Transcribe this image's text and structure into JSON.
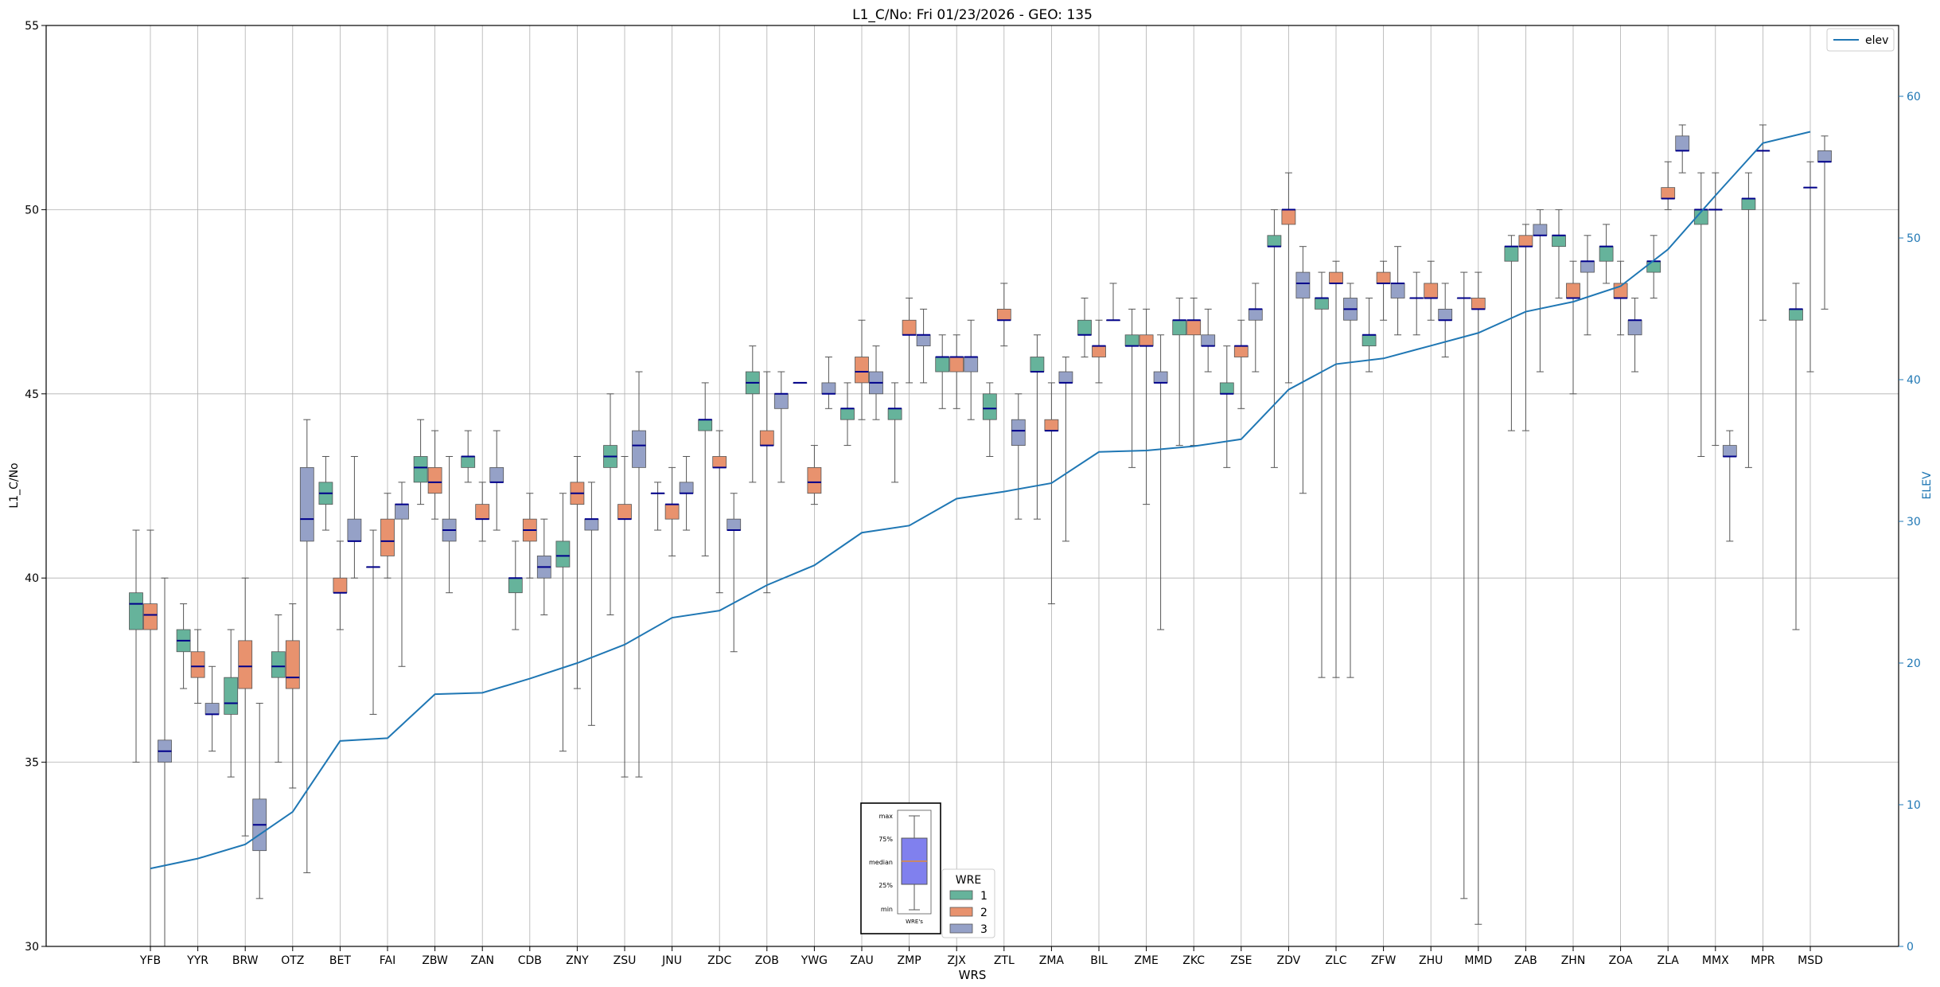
{
  "chart_data": {
    "type": "box",
    "title": "L1_C/No: Fri 01/23/2026 - GEO: 135",
    "xlabel": "WRS",
    "ylabel": "L1_C/No",
    "y2label": "ELEV",
    "ylim": [
      30,
      55
    ],
    "y2lim": [
      0,
      65
    ],
    "yticks": [
      30,
      35,
      40,
      45,
      50,
      55
    ],
    "y2ticks": [
      0,
      10,
      20,
      30,
      40,
      50,
      60
    ],
    "grid": true,
    "categories": [
      "YFB",
      "YYR",
      "BRW",
      "OTZ",
      "BET",
      "FAI",
      "ZBW",
      "ZAN",
      "CDB",
      "ZNY",
      "ZSU",
      "JNU",
      "ZDC",
      "ZOB",
      "YWG",
      "ZAU",
      "ZMP",
      "ZJX",
      "ZTL",
      "ZMA",
      "BIL",
      "ZME",
      "ZKC",
      "ZSE",
      "ZDV",
      "ZLC",
      "ZFW",
      "ZHU",
      "MMD",
      "ZAB",
      "ZHN",
      "ZOA",
      "ZLA",
      "MMX",
      "MPR",
      "MSD"
    ],
    "series_colors": {
      "1": "#66b39b",
      "2": "#e8926e",
      "3": "#95a1c7"
    },
    "median_color": "#00008b",
    "elev_color": "#1f77b4",
    "boxes": [
      {
        "cat": "YFB",
        "wre": 1,
        "min": 35.0,
        "q1": 38.6,
        "median": 39.3,
        "q3": 39.6,
        "max": 41.3
      },
      {
        "cat": "YFB",
        "wre": 2,
        "min": 30.0,
        "q1": 38.6,
        "median": 39.0,
        "q3": 39.3,
        "max": 41.3
      },
      {
        "cat": "YFB",
        "wre": 3,
        "min": 30.0,
        "q1": 35.0,
        "median": 35.3,
        "q3": 35.6,
        "max": 40.0
      },
      {
        "cat": "YYR",
        "wre": 1,
        "min": 37.0,
        "q1": 38.0,
        "median": 38.3,
        "q3": 38.6,
        "max": 39.3
      },
      {
        "cat": "YYR",
        "wre": 2,
        "min": 36.6,
        "q1": 37.3,
        "median": 37.6,
        "q3": 38.0,
        "max": 38.6
      },
      {
        "cat": "YYR",
        "wre": 3,
        "min": 35.3,
        "q1": 36.3,
        "median": 36.3,
        "q3": 36.6,
        "max": 37.6
      },
      {
        "cat": "BRW",
        "wre": 1,
        "min": 34.6,
        "q1": 36.3,
        "median": 36.6,
        "q3": 37.3,
        "max": 38.6
      },
      {
        "cat": "BRW",
        "wre": 2,
        "min": 33.0,
        "q1": 37.0,
        "median": 37.6,
        "q3": 38.3,
        "max": 40.0
      },
      {
        "cat": "BRW",
        "wre": 3,
        "min": 31.3,
        "q1": 32.6,
        "median": 33.3,
        "q3": 34.0,
        "max": 36.6
      },
      {
        "cat": "OTZ",
        "wre": 1,
        "min": 35.0,
        "q1": 37.3,
        "median": 37.6,
        "q3": 38.0,
        "max": 39.0
      },
      {
        "cat": "OTZ",
        "wre": 2,
        "min": 34.3,
        "q1": 37.0,
        "median": 37.3,
        "q3": 38.3,
        "max": 39.3
      },
      {
        "cat": "OTZ",
        "wre": 3,
        "min": 32.0,
        "q1": 41.0,
        "median": 41.6,
        "q3": 43.0,
        "max": 44.3
      },
      {
        "cat": "BET",
        "wre": 1,
        "min": 41.3,
        "q1": 42.0,
        "median": 42.3,
        "q3": 42.6,
        "max": 43.3
      },
      {
        "cat": "BET",
        "wre": 2,
        "min": 38.6,
        "q1": 39.6,
        "median": 39.6,
        "q3": 40.0,
        "max": 41.0
      },
      {
        "cat": "BET",
        "wre": 3,
        "min": 40.0,
        "q1": 41.0,
        "median": 41.0,
        "q3": 41.6,
        "max": 43.3
      },
      {
        "cat": "FAI",
        "wre": 1,
        "min": 36.3,
        "q1": 40.3,
        "median": 40.3,
        "q3": 40.3,
        "max": 41.3
      },
      {
        "cat": "FAI",
        "wre": 2,
        "min": 40.0,
        "q1": 40.6,
        "median": 41.0,
        "q3": 41.6,
        "max": 42.3
      },
      {
        "cat": "FAI",
        "wre": 3,
        "min": 37.6,
        "q1": 41.6,
        "median": 42.0,
        "q3": 42.0,
        "max": 42.6
      },
      {
        "cat": "ZBW",
        "wre": 1,
        "min": 42.0,
        "q1": 42.6,
        "median": 43.0,
        "q3": 43.3,
        "max": 44.3
      },
      {
        "cat": "ZBW",
        "wre": 2,
        "min": 41.6,
        "q1": 42.3,
        "median": 42.6,
        "q3": 43.0,
        "max": 44.0
      },
      {
        "cat": "ZBW",
        "wre": 3,
        "min": 39.6,
        "q1": 41.0,
        "median": 41.3,
        "q3": 41.6,
        "max": 43.3
      },
      {
        "cat": "ZAN",
        "wre": 1,
        "min": 42.6,
        "q1": 43.0,
        "median": 43.3,
        "q3": 43.3,
        "max": 44.0
      },
      {
        "cat": "ZAN",
        "wre": 2,
        "min": 41.0,
        "q1": 41.6,
        "median": 41.6,
        "q3": 42.0,
        "max": 42.6
      },
      {
        "cat": "ZAN",
        "wre": 3,
        "min": 41.3,
        "q1": 42.6,
        "median": 42.6,
        "q3": 43.0,
        "max": 44.0
      },
      {
        "cat": "CDB",
        "wre": 1,
        "min": 38.6,
        "q1": 39.6,
        "median": 40.0,
        "q3": 40.0,
        "max": 41.0
      },
      {
        "cat": "CDB",
        "wre": 2,
        "min": 40.0,
        "q1": 41.0,
        "median": 41.3,
        "q3": 41.6,
        "max": 42.3
      },
      {
        "cat": "CDB",
        "wre": 3,
        "min": 39.0,
        "q1": 40.0,
        "median": 40.3,
        "q3": 40.6,
        "max": 41.6
      },
      {
        "cat": "ZNY",
        "wre": 1,
        "min": 35.3,
        "q1": 40.3,
        "median": 40.6,
        "q3": 41.0,
        "max": 42.3
      },
      {
        "cat": "ZNY",
        "wre": 2,
        "min": 37.0,
        "q1": 42.0,
        "median": 42.3,
        "q3": 42.6,
        "max": 43.3
      },
      {
        "cat": "ZNY",
        "wre": 3,
        "min": 36.0,
        "q1": 41.3,
        "median": 41.6,
        "q3": 41.6,
        "max": 42.6
      },
      {
        "cat": "ZSU",
        "wre": 1,
        "min": 39.0,
        "q1": 43.0,
        "median": 43.3,
        "q3": 43.6,
        "max": 45.0
      },
      {
        "cat": "ZSU",
        "wre": 2,
        "min": 34.6,
        "q1": 41.6,
        "median": 41.6,
        "q3": 42.0,
        "max": 43.3
      },
      {
        "cat": "ZSU",
        "wre": 3,
        "min": 34.6,
        "q1": 43.0,
        "median": 43.6,
        "q3": 44.0,
        "max": 45.6
      },
      {
        "cat": "JNU",
        "wre": 1,
        "min": 41.3,
        "q1": 42.3,
        "median": 42.3,
        "q3": 42.3,
        "max": 42.6
      },
      {
        "cat": "JNU",
        "wre": 2,
        "min": 40.6,
        "q1": 41.6,
        "median": 42.0,
        "q3": 42.0,
        "max": 43.0
      },
      {
        "cat": "JNU",
        "wre": 3,
        "min": 41.3,
        "q1": 42.3,
        "median": 42.3,
        "q3": 42.6,
        "max": 43.3
      },
      {
        "cat": "ZDC",
        "wre": 1,
        "min": 40.6,
        "q1": 44.0,
        "median": 44.3,
        "q3": 44.3,
        "max": 45.3
      },
      {
        "cat": "ZDC",
        "wre": 2,
        "min": 39.6,
        "q1": 43.0,
        "median": 43.0,
        "q3": 43.3,
        "max": 44.0
      },
      {
        "cat": "ZDC",
        "wre": 3,
        "min": 38.0,
        "q1": 41.3,
        "median": 41.3,
        "q3": 41.6,
        "max": 42.3
      },
      {
        "cat": "ZOB",
        "wre": 1,
        "min": 42.6,
        "q1": 45.0,
        "median": 45.3,
        "q3": 45.6,
        "max": 46.3
      },
      {
        "cat": "ZOB",
        "wre": 2,
        "min": 39.6,
        "q1": 43.6,
        "median": 43.6,
        "q3": 44.0,
        "max": 45.6
      },
      {
        "cat": "ZOB",
        "wre": 3,
        "min": 42.6,
        "q1": 44.6,
        "median": 45.0,
        "q3": 45.0,
        "max": 45.6
      },
      {
        "cat": "YWG",
        "wre": 1,
        "min": 45.3,
        "q1": 45.3,
        "median": 45.3,
        "q3": 45.3,
        "max": 45.3
      },
      {
        "cat": "YWG",
        "wre": 2,
        "min": 42.0,
        "q1": 42.3,
        "median": 42.6,
        "q3": 43.0,
        "max": 43.6
      },
      {
        "cat": "YWG",
        "wre": 3,
        "min": 44.6,
        "q1": 45.0,
        "median": 45.0,
        "q3": 45.3,
        "max": 46.0
      },
      {
        "cat": "ZAU",
        "wre": 1,
        "min": 43.6,
        "q1": 44.3,
        "median": 44.6,
        "q3": 44.6,
        "max": 45.3
      },
      {
        "cat": "ZAU",
        "wre": 2,
        "min": 44.3,
        "q1": 45.3,
        "median": 45.6,
        "q3": 46.0,
        "max": 47.0
      },
      {
        "cat": "ZAU",
        "wre": 3,
        "min": 44.3,
        "q1": 45.0,
        "median": 45.3,
        "q3": 45.6,
        "max": 46.3
      },
      {
        "cat": "ZMP",
        "wre": 1,
        "min": 42.6,
        "q1": 44.3,
        "median": 44.6,
        "q3": 44.6,
        "max": 45.3
      },
      {
        "cat": "ZMP",
        "wre": 2,
        "min": 45.3,
        "q1": 46.6,
        "median": 46.6,
        "q3": 47.0,
        "max": 47.6
      },
      {
        "cat": "ZMP",
        "wre": 3,
        "min": 45.3,
        "q1": 46.3,
        "median": 46.6,
        "q3": 46.6,
        "max": 47.3
      },
      {
        "cat": "ZJX",
        "wre": 1,
        "min": 44.6,
        "q1": 45.6,
        "median": 46.0,
        "q3": 46.0,
        "max": 46.6
      },
      {
        "cat": "ZJX",
        "wre": 2,
        "min": 44.6,
        "q1": 45.6,
        "median": 46.0,
        "q3": 46.0,
        "max": 46.6
      },
      {
        "cat": "ZJX",
        "wre": 3,
        "min": 44.3,
        "q1": 45.6,
        "median": 46.0,
        "q3": 46.0,
        "max": 47.0
      },
      {
        "cat": "ZTL",
        "wre": 1,
        "min": 43.3,
        "q1": 44.3,
        "median": 44.6,
        "q3": 45.0,
        "max": 45.3
      },
      {
        "cat": "ZTL",
        "wre": 2,
        "min": 46.3,
        "q1": 47.0,
        "median": 47.0,
        "q3": 47.3,
        "max": 48.0
      },
      {
        "cat": "ZTL",
        "wre": 3,
        "min": 41.6,
        "q1": 43.6,
        "median": 44.0,
        "q3": 44.3,
        "max": 45.0
      },
      {
        "cat": "ZMA",
        "wre": 1,
        "min": 41.6,
        "q1": 45.6,
        "median": 45.6,
        "q3": 46.0,
        "max": 46.6
      },
      {
        "cat": "ZMA",
        "wre": 2,
        "min": 39.3,
        "q1": 44.0,
        "median": 44.0,
        "q3": 44.3,
        "max": 45.3
      },
      {
        "cat": "ZMA",
        "wre": 3,
        "min": 41.0,
        "q1": 45.3,
        "median": 45.3,
        "q3": 45.6,
        "max": 46.0
      },
      {
        "cat": "BIL",
        "wre": 1,
        "min": 46.0,
        "q1": 46.6,
        "median": 46.6,
        "q3": 47.0,
        "max": 47.6
      },
      {
        "cat": "BIL",
        "wre": 2,
        "min": 45.3,
        "q1": 46.0,
        "median": 46.3,
        "q3": 46.3,
        "max": 47.0
      },
      {
        "cat": "BIL",
        "wre": 3,
        "min": 47.0,
        "q1": 47.0,
        "median": 47.0,
        "q3": 47.0,
        "max": 48.0
      },
      {
        "cat": "ZME",
        "wre": 1,
        "min": 43.0,
        "q1": 46.3,
        "median": 46.3,
        "q3": 46.6,
        "max": 47.3
      },
      {
        "cat": "ZME",
        "wre": 2,
        "min": 42.0,
        "q1": 46.3,
        "median": 46.3,
        "q3": 46.6,
        "max": 47.3
      },
      {
        "cat": "ZME",
        "wre": 3,
        "min": 38.6,
        "q1": 45.3,
        "median": 45.3,
        "q3": 45.6,
        "max": 46.6
      },
      {
        "cat": "ZKC",
        "wre": 1,
        "min": 43.6,
        "q1": 46.6,
        "median": 47.0,
        "q3": 47.0,
        "max": 47.6
      },
      {
        "cat": "ZKC",
        "wre": 2,
        "min": 43.6,
        "q1": 46.6,
        "median": 47.0,
        "q3": 47.0,
        "max": 47.6
      },
      {
        "cat": "ZKC",
        "wre": 3,
        "min": 45.6,
        "q1": 46.3,
        "median": 46.3,
        "q3": 46.6,
        "max": 47.3
      },
      {
        "cat": "ZSE",
        "wre": 1,
        "min": 43.0,
        "q1": 45.0,
        "median": 45.0,
        "q3": 45.3,
        "max": 46.3
      },
      {
        "cat": "ZSE",
        "wre": 2,
        "min": 44.6,
        "q1": 46.0,
        "median": 46.3,
        "q3": 46.3,
        "max": 47.0
      },
      {
        "cat": "ZSE",
        "wre": 3,
        "min": 45.6,
        "q1": 47.0,
        "median": 47.3,
        "q3": 47.3,
        "max": 48.0
      },
      {
        "cat": "ZDV",
        "wre": 1,
        "min": 43.0,
        "q1": 49.0,
        "median": 49.0,
        "q3": 49.3,
        "max": 50.0
      },
      {
        "cat": "ZDV",
        "wre": 2,
        "min": 45.3,
        "q1": 49.6,
        "median": 50.0,
        "q3": 50.0,
        "max": 51.0
      },
      {
        "cat": "ZDV",
        "wre": 3,
        "min": 42.3,
        "q1": 47.6,
        "median": 48.0,
        "q3": 48.3,
        "max": 49.0
      },
      {
        "cat": "ZLC",
        "wre": 1,
        "min": 37.3,
        "q1": 47.3,
        "median": 47.6,
        "q3": 47.6,
        "max": 48.3
      },
      {
        "cat": "ZLC",
        "wre": 2,
        "min": 37.3,
        "q1": 48.0,
        "median": 48.0,
        "q3": 48.3,
        "max": 48.6
      },
      {
        "cat": "ZLC",
        "wre": 3,
        "min": 37.3,
        "q1": 47.0,
        "median": 47.3,
        "q3": 47.6,
        "max": 48.0
      },
      {
        "cat": "ZFW",
        "wre": 1,
        "min": 45.6,
        "q1": 46.3,
        "median": 46.6,
        "q3": 46.6,
        "max": 47.6
      },
      {
        "cat": "ZFW",
        "wre": 2,
        "min": 47.0,
        "q1": 48.0,
        "median": 48.0,
        "q3": 48.3,
        "max": 48.6
      },
      {
        "cat": "ZFW",
        "wre": 3,
        "min": 46.6,
        "q1": 47.6,
        "median": 48.0,
        "q3": 48.0,
        "max": 49.0
      },
      {
        "cat": "ZHU",
        "wre": 1,
        "min": 46.6,
        "q1": 47.6,
        "median": 47.6,
        "q3": 47.6,
        "max": 48.3
      },
      {
        "cat": "ZHU",
        "wre": 2,
        "min": 47.0,
        "q1": 47.6,
        "median": 47.6,
        "q3": 48.0,
        "max": 48.6
      },
      {
        "cat": "ZHU",
        "wre": 3,
        "min": 46.0,
        "q1": 47.0,
        "median": 47.0,
        "q3": 47.3,
        "max": 48.0
      },
      {
        "cat": "MMD",
        "wre": 1,
        "min": 31.3,
        "q1": 47.6,
        "median": 47.6,
        "q3": 47.6,
        "max": 48.3
      },
      {
        "cat": "MMD",
        "wre": 2,
        "min": 30.6,
        "q1": 47.3,
        "median": 47.3,
        "q3": 47.6,
        "max": 48.3
      },
      {
        "cat": "ZAB",
        "wre": 1,
        "min": 44.0,
        "q1": 48.6,
        "median": 49.0,
        "q3": 49.0,
        "max": 49.3
      },
      {
        "cat": "ZAB",
        "wre": 2,
        "min": 44.0,
        "q1": 49.0,
        "median": 49.0,
        "q3": 49.3,
        "max": 49.6
      },
      {
        "cat": "ZAB",
        "wre": 3,
        "min": 45.6,
        "q1": 49.3,
        "median": 49.3,
        "q3": 49.6,
        "max": 50.0
      },
      {
        "cat": "ZHN",
        "wre": 1,
        "min": 47.6,
        "q1": 49.0,
        "median": 49.3,
        "q3": 49.3,
        "max": 50.0
      },
      {
        "cat": "ZHN",
        "wre": 2,
        "min": 45.0,
        "q1": 47.6,
        "median": 47.6,
        "q3": 48.0,
        "max": 48.6
      },
      {
        "cat": "ZHN",
        "wre": 3,
        "min": 46.6,
        "q1": 48.3,
        "median": 48.6,
        "q3": 48.6,
        "max": 49.3
      },
      {
        "cat": "ZOA",
        "wre": 1,
        "min": 48.0,
        "q1": 48.6,
        "median": 49.0,
        "q3": 49.0,
        "max": 49.6
      },
      {
        "cat": "ZOA",
        "wre": 2,
        "min": 46.6,
        "q1": 47.6,
        "median": 47.6,
        "q3": 48.0,
        "max": 48.6
      },
      {
        "cat": "ZOA",
        "wre": 3,
        "min": 45.6,
        "q1": 46.6,
        "median": 47.0,
        "q3": 47.0,
        "max": 47.6
      },
      {
        "cat": "ZLA",
        "wre": 1,
        "min": 47.6,
        "q1": 48.3,
        "median": 48.6,
        "q3": 48.6,
        "max": 49.3
      },
      {
        "cat": "ZLA",
        "wre": 2,
        "min": 50.0,
        "q1": 50.3,
        "median": 50.3,
        "q3": 50.6,
        "max": 51.3
      },
      {
        "cat": "ZLA",
        "wre": 3,
        "min": 51.0,
        "q1": 51.6,
        "median": 51.6,
        "q3": 52.0,
        "max": 52.3
      },
      {
        "cat": "MMX",
        "wre": 1,
        "min": 43.3,
        "q1": 49.6,
        "median": 50.0,
        "q3": 50.0,
        "max": 51.0
      },
      {
        "cat": "MMX",
        "wre": 2,
        "min": 43.6,
        "q1": 50.0,
        "median": 50.0,
        "q3": 50.0,
        "max": 51.0
      },
      {
        "cat": "MMX",
        "wre": 3,
        "min": 41.0,
        "q1": 43.3,
        "median": 43.3,
        "q3": 43.6,
        "max": 44.0
      },
      {
        "cat": "MPR",
        "wre": 1,
        "min": 43.0,
        "q1": 50.0,
        "median": 50.3,
        "q3": 50.3,
        "max": 51.0
      },
      {
        "cat": "MPR",
        "wre": 2,
        "min": 47.0,
        "q1": 51.6,
        "median": 51.6,
        "q3": 51.6,
        "max": 52.3
      },
      {
        "cat": "MSD",
        "wre": 1,
        "min": 38.6,
        "q1": 47.0,
        "median": 47.3,
        "q3": 47.3,
        "max": 48.0
      },
      {
        "cat": "MSD",
        "wre": 2,
        "min": 45.6,
        "q1": 50.6,
        "median": 50.6,
        "q3": 50.6,
        "max": 51.3
      },
      {
        "cat": "MSD",
        "wre": 3,
        "min": 47.3,
        "q1": 51.3,
        "median": 51.3,
        "q3": 51.6,
        "max": 52.0
      }
    ],
    "elev": {
      "name": "elev",
      "values": [
        5.5,
        6.2,
        7.2,
        9.5,
        14.5,
        14.7,
        17.8,
        17.9,
        18.9,
        20.0,
        21.3,
        23.2,
        23.7,
        25.5,
        26.9,
        29.2,
        29.7,
        31.6,
        32.1,
        32.7,
        34.9,
        35.0,
        35.3,
        35.8,
        39.3,
        41.1,
        41.5,
        42.4,
        43.3,
        44.8,
        45.5,
        46.6,
        49.2,
        53.0,
        56.7,
        57.5
      ]
    },
    "legend_wre": {
      "title": "WRE",
      "entries": [
        "1",
        "2",
        "3"
      ]
    },
    "legend_inset": {
      "labels": [
        "max",
        "75%",
        "median",
        "25%",
        "min"
      ],
      "caption": "WRE's"
    }
  }
}
